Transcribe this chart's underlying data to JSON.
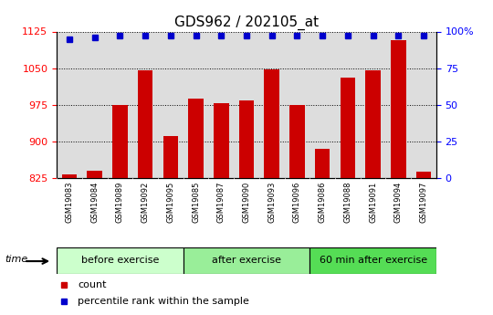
{
  "title": "GDS962 / 202105_at",
  "categories": [
    "GSM19083",
    "GSM19084",
    "GSM19089",
    "GSM19092",
    "GSM19095",
    "GSM19085",
    "GSM19087",
    "GSM19090",
    "GSM19093",
    "GSM19096",
    "GSM19086",
    "GSM19088",
    "GSM19091",
    "GSM19094",
    "GSM19097"
  ],
  "bar_values": [
    833,
    840,
    975,
    1046,
    910,
    988,
    978,
    984,
    1048,
    975,
    885,
    1030,
    1046,
    1108,
    838
  ],
  "percentile_values": [
    95,
    96,
    97,
    97,
    97.5,
    97,
    97,
    97.5,
    97.5,
    97,
    97,
    97,
    97.5,
    97.5,
    97
  ],
  "bar_color": "#cc0000",
  "percentile_color": "#0000cc",
  "ylim_left": [
    825,
    1125
  ],
  "ylim_right": [
    0,
    100
  ],
  "yticks_left": [
    825,
    900,
    975,
    1050,
    1125
  ],
  "yticks_right": [
    0,
    25,
    50,
    75,
    100
  ],
  "groups": [
    {
      "label": "before exercise",
      "start": 0,
      "end": 5,
      "color": "#ccffcc"
    },
    {
      "label": "after exercise",
      "start": 5,
      "end": 10,
      "color": "#99ee99"
    },
    {
      "label": "60 min after exercise",
      "start": 10,
      "end": 15,
      "color": "#55dd55"
    }
  ],
  "time_label": "time",
  "legend_count": "count",
  "legend_pct": "percentile rank within the sample",
  "bar_width": 0.6,
  "title_fontsize": 11,
  "tick_fontsize": 8,
  "xtick_fontsize": 6,
  "group_label_fontsize": 8,
  "legend_fontsize": 8,
  "plot_bg_color": "#dddddd",
  "xtick_bg_color": "#cccccc"
}
